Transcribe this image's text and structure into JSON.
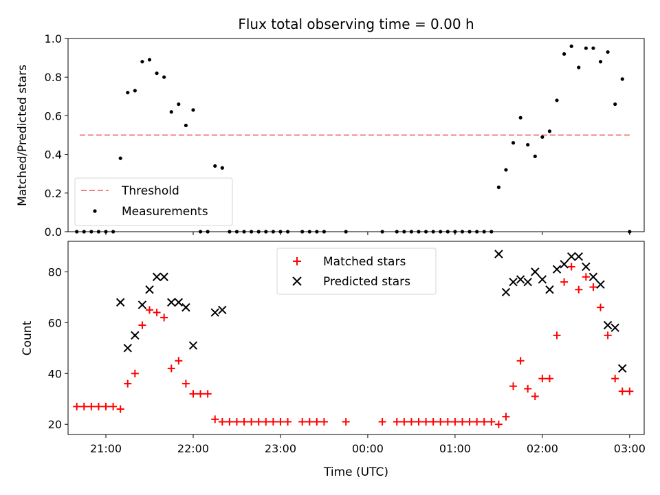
{
  "chart_data": [
    {
      "type": "scatter",
      "title": "Flux total observing time = 0.00 h",
      "ylabel": "Matched/Predicted stars",
      "xlim": [
        "20:34",
        "03:10"
      ],
      "ylim": [
        0,
        1.0
      ],
      "yticks": [
        "0.0",
        "0.2",
        "0.4",
        "0.6",
        "0.8",
        "1.0"
      ],
      "legend": "lower-left",
      "threshold": {
        "name": "Threshold",
        "value": 0.5,
        "x_start": "20:42",
        "x_end": "03:00",
        "color": "#f08080",
        "style": "dashed"
      },
      "series": [
        {
          "name": "Measurements",
          "color": "#000000",
          "marker": "dot",
          "points": [
            [
              "20:40",
              0
            ],
            [
              "20:45",
              0
            ],
            [
              "20:50",
              0
            ],
            [
              "20:55",
              0
            ],
            [
              "21:00",
              0
            ],
            [
              "21:05",
              0
            ],
            [
              "21:10",
              0.38
            ],
            [
              "21:15",
              0.72
            ],
            [
              "21:20",
              0.73
            ],
            [
              "21:25",
              0.88
            ],
            [
              "21:30",
              0.89
            ],
            [
              "21:35",
              0.82
            ],
            [
              "21:40",
              0.8
            ],
            [
              "21:45",
              0.62
            ],
            [
              "21:50",
              0.66
            ],
            [
              "21:55",
              0.55
            ],
            [
              "22:00",
              0.63
            ],
            [
              "22:05",
              0
            ],
            [
              "22:10",
              0
            ],
            [
              "22:15",
              0.34
            ],
            [
              "22:20",
              0.33
            ],
            [
              "22:25",
              0
            ],
            [
              "22:30",
              0
            ],
            [
              "22:35",
              0
            ],
            [
              "22:40",
              0
            ],
            [
              "22:45",
              0
            ],
            [
              "22:50",
              0
            ],
            [
              "22:55",
              0
            ],
            [
              "23:00",
              0
            ],
            [
              "23:05",
              0
            ],
            [
              "23:15",
              0
            ],
            [
              "23:20",
              0
            ],
            [
              "23:25",
              0
            ],
            [
              "23:30",
              0
            ],
            [
              "23:45",
              0
            ],
            [
              "00:10",
              0
            ],
            [
              "00:20",
              0
            ],
            [
              "00:25",
              0
            ],
            [
              "00:30",
              0
            ],
            [
              "00:35",
              0
            ],
            [
              "00:40",
              0
            ],
            [
              "00:45",
              0
            ],
            [
              "00:50",
              0
            ],
            [
              "00:55",
              0
            ],
            [
              "01:00",
              0
            ],
            [
              "01:05",
              0
            ],
            [
              "01:10",
              0
            ],
            [
              "01:15",
              0
            ],
            [
              "01:20",
              0
            ],
            [
              "01:25",
              0
            ],
            [
              "01:30",
              0.23
            ],
            [
              "01:35",
              0.32
            ],
            [
              "01:40",
              0.46
            ],
            [
              "01:45",
              0.59
            ],
            [
              "01:50",
              0.45
            ],
            [
              "01:55",
              0.39
            ],
            [
              "02:00",
              0.49
            ],
            [
              "02:05",
              0.52
            ],
            [
              "02:10",
              0.68
            ],
            [
              "02:15",
              0.92
            ],
            [
              "02:20",
              0.96
            ],
            [
              "02:25",
              0.85
            ],
            [
              "02:30",
              0.95
            ],
            [
              "02:35",
              0.95
            ],
            [
              "02:40",
              0.88
            ],
            [
              "02:45",
              0.93
            ],
            [
              "02:50",
              0.66
            ],
            [
              "02:55",
              0.79
            ],
            [
              "03:00",
              0
            ]
          ]
        }
      ]
    },
    {
      "type": "scatter",
      "xlabel": "Time (UTC)",
      "ylabel": "Count",
      "xlim": [
        "20:34",
        "03:10"
      ],
      "ylim": [
        16,
        92
      ],
      "yticks": [
        "20",
        "40",
        "60",
        "80"
      ],
      "xticks": [
        "21:00",
        "22:00",
        "23:00",
        "00:00",
        "01:00",
        "02:00",
        "03:00"
      ],
      "legend": "upper-center",
      "series": [
        {
          "name": "Matched stars",
          "color": "#ff0000",
          "marker": "plus",
          "points": [
            [
              "20:40",
              27
            ],
            [
              "20:45",
              27
            ],
            [
              "20:50",
              27
            ],
            [
              "20:55",
              27
            ],
            [
              "21:00",
              27
            ],
            [
              "21:05",
              27
            ],
            [
              "21:10",
              26
            ],
            [
              "21:15",
              36
            ],
            [
              "21:20",
              40
            ],
            [
              "21:25",
              59
            ],
            [
              "21:30",
              65
            ],
            [
              "21:35",
              64
            ],
            [
              "21:40",
              62
            ],
            [
              "21:45",
              42
            ],
            [
              "21:50",
              45
            ],
            [
              "21:55",
              36
            ],
            [
              "22:00",
              32
            ],
            [
              "22:05",
              32
            ],
            [
              "22:10",
              32
            ],
            [
              "22:15",
              22
            ],
            [
              "22:20",
              21
            ],
            [
              "22:25",
              21
            ],
            [
              "22:30",
              21
            ],
            [
              "22:35",
              21
            ],
            [
              "22:40",
              21
            ],
            [
              "22:45",
              21
            ],
            [
              "22:50",
              21
            ],
            [
              "22:55",
              21
            ],
            [
              "23:00",
              21
            ],
            [
              "23:05",
              21
            ],
            [
              "23:15",
              21
            ],
            [
              "23:20",
              21
            ],
            [
              "23:25",
              21
            ],
            [
              "23:30",
              21
            ],
            [
              "23:45",
              21
            ],
            [
              "00:10",
              21
            ],
            [
              "00:20",
              21
            ],
            [
              "00:25",
              21
            ],
            [
              "00:30",
              21
            ],
            [
              "00:35",
              21
            ],
            [
              "00:40",
              21
            ],
            [
              "00:45",
              21
            ],
            [
              "00:50",
              21
            ],
            [
              "00:55",
              21
            ],
            [
              "01:00",
              21
            ],
            [
              "01:05",
              21
            ],
            [
              "01:10",
              21
            ],
            [
              "01:15",
              21
            ],
            [
              "01:20",
              21
            ],
            [
              "01:25",
              21
            ],
            [
              "01:30",
              20
            ],
            [
              "01:35",
              23
            ],
            [
              "01:40",
              35
            ],
            [
              "01:45",
              45
            ],
            [
              "01:50",
              34
            ],
            [
              "01:55",
              31
            ],
            [
              "02:00",
              38
            ],
            [
              "02:05",
              38
            ],
            [
              "02:10",
              55
            ],
            [
              "02:15",
              76
            ],
            [
              "02:20",
              82
            ],
            [
              "02:25",
              73
            ],
            [
              "02:30",
              78
            ],
            [
              "02:35",
              74
            ],
            [
              "02:40",
              66
            ],
            [
              "02:45",
              55
            ],
            [
              "02:50",
              38
            ],
            [
              "02:55",
              33
            ],
            [
              "03:00",
              33
            ]
          ]
        },
        {
          "name": "Predicted stars",
          "color": "#000000",
          "marker": "x",
          "points": [
            [
              "21:10",
              68
            ],
            [
              "21:15",
              50
            ],
            [
              "21:20",
              55
            ],
            [
              "21:25",
              67
            ],
            [
              "21:30",
              73
            ],
            [
              "21:35",
              78
            ],
            [
              "21:40",
              78
            ],
            [
              "21:45",
              68
            ],
            [
              "21:50",
              68
            ],
            [
              "21:55",
              66
            ],
            [
              "22:00",
              51
            ],
            [
              "22:15",
              64
            ],
            [
              "22:20",
              65
            ],
            [
              "01:30",
              87
            ],
            [
              "01:35",
              72
            ],
            [
              "01:40",
              76
            ],
            [
              "01:45",
              77
            ],
            [
              "01:50",
              76
            ],
            [
              "01:55",
              80
            ],
            [
              "02:00",
              77
            ],
            [
              "02:05",
              73
            ],
            [
              "02:10",
              81
            ],
            [
              "02:15",
              83
            ],
            [
              "02:20",
              86
            ],
            [
              "02:25",
              86
            ],
            [
              "02:30",
              82
            ],
            [
              "02:35",
              78
            ],
            [
              "02:40",
              75
            ],
            [
              "02:45",
              59
            ],
            [
              "02:50",
              58
            ],
            [
              "02:55",
              42
            ]
          ]
        }
      ]
    }
  ]
}
